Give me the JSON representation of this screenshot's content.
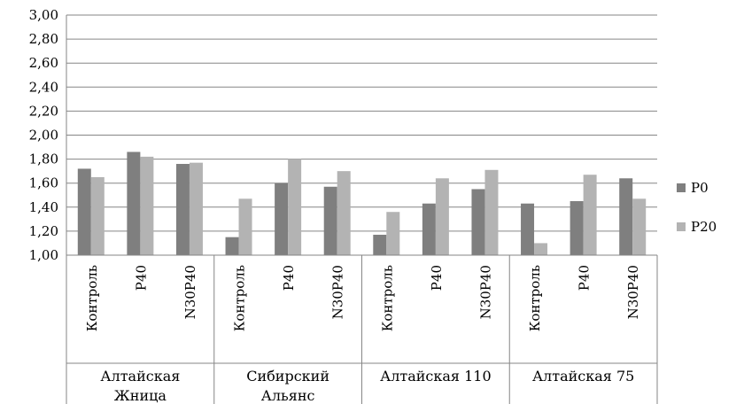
{
  "chart_data": {
    "type": "bar",
    "groups": [
      {
        "label": "Алтайская Жница",
        "lines": [
          "Алтайская",
          "Жница"
        ],
        "categories": [
          "Контроль",
          "P40",
          "N30P40"
        ]
      },
      {
        "label": "Сибирский Альянс",
        "lines": [
          "Сибирский",
          "Альянс"
        ],
        "categories": [
          "Контроль",
          "P40",
          "N30P40"
        ]
      },
      {
        "label": "Алтайская 110",
        "lines": [
          "Алтайская 110"
        ],
        "categories": [
          "Контроль",
          "P40",
          "N30P40"
        ]
      },
      {
        "label": "Алтайская 75",
        "lines": [
          "Алтайская 75"
        ],
        "categories": [
          "Контроль",
          "P40",
          "N30P40"
        ]
      }
    ],
    "series": [
      {
        "name": "P0",
        "color": "#7f7f7f",
        "values": [
          1.72,
          1.86,
          1.76,
          1.15,
          1.6,
          1.57,
          1.17,
          1.43,
          1.55,
          1.43,
          1.45,
          1.64
        ]
      },
      {
        "name": "P20",
        "color": "#b3b3b3",
        "values": [
          1.65,
          1.82,
          1.77,
          1.47,
          1.8,
          1.7,
          1.36,
          1.64,
          1.71,
          1.1,
          1.67,
          1.47
        ]
      }
    ],
    "ylim": [
      1.0,
      3.0
    ],
    "ytick_step": 0.2,
    "yticks": [
      "1,00",
      "1,20",
      "1,40",
      "1,60",
      "1,80",
      "2,00",
      "2,20",
      "2,40",
      "2,60",
      "2,80",
      "3,00"
    ],
    "grid": true,
    "legend": "right",
    "xlabel": "",
    "ylabel": "",
    "title": ""
  }
}
